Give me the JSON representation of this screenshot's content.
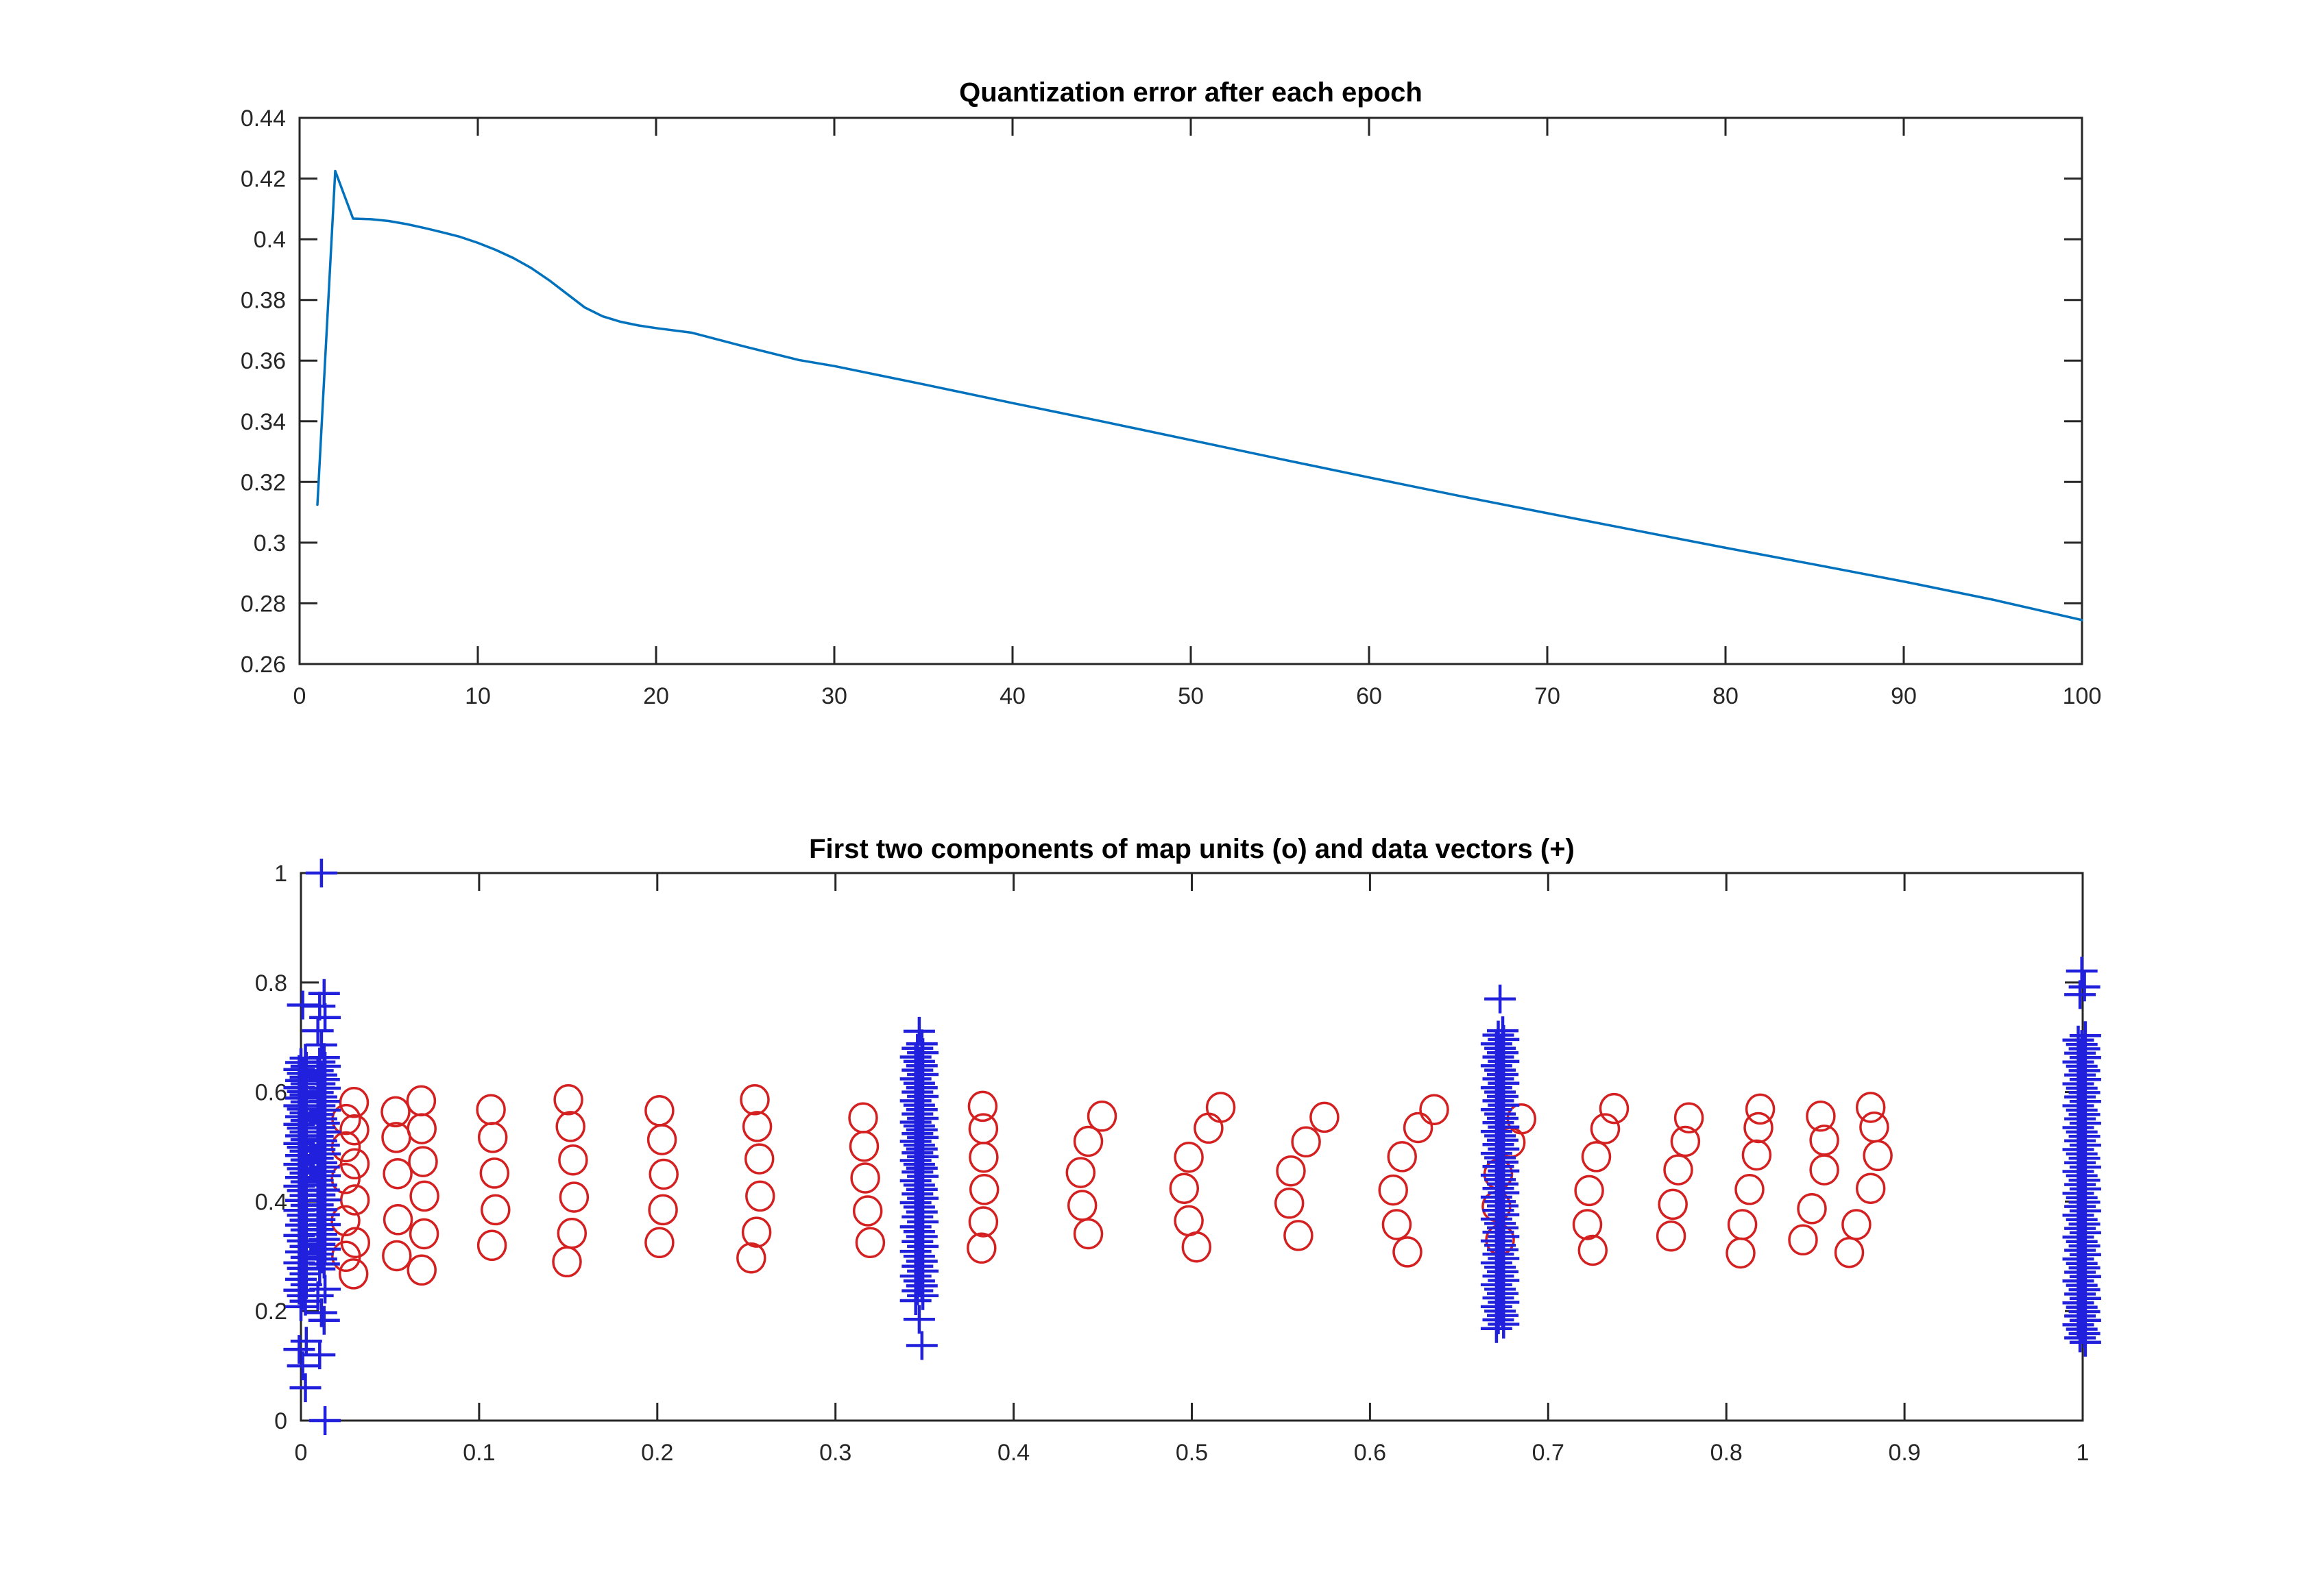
{
  "figure": {
    "background": "#ffffff",
    "axis_color": "#262626",
    "tick_label_color": "#262626",
    "title_color": "#000000",
    "line_color": "#0072bd",
    "map_unit_color": "#d42020",
    "data_vector_color": "#2121dd"
  },
  "chart_data": [
    {
      "type": "line",
      "title": "Quantization error after each epoch",
      "xlabel": "",
      "ylabel": "",
      "xlim": [
        0,
        100
      ],
      "ylim": [
        0.26,
        0.44
      ],
      "grid": false,
      "legend": null,
      "xticks": [
        0,
        10,
        20,
        30,
        40,
        50,
        60,
        70,
        80,
        90,
        100
      ],
      "xtick_labels": [
        "0",
        "10",
        "20",
        "30",
        "40",
        "50",
        "60",
        "70",
        "80",
        "90",
        "100"
      ],
      "yticks": [
        0.26,
        0.28,
        0.3,
        0.32,
        0.34,
        0.36,
        0.38,
        0.4,
        0.42,
        0.44
      ],
      "ytick_labels": [
        "0.26",
        "0.28",
        "0.3",
        "0.32",
        "0.34",
        "0.36",
        "0.38",
        "0.4",
        "0.42",
        "0.44"
      ],
      "line_color": "#0072bd",
      "x": [
        1,
        2,
        3,
        4,
        5,
        6,
        7,
        8,
        9,
        10,
        11,
        12,
        13,
        14,
        15,
        16,
        17,
        18,
        19,
        20,
        22,
        25,
        28,
        30,
        35,
        40,
        45,
        50,
        55,
        60,
        65,
        70,
        75,
        80,
        85,
        90,
        95,
        100
      ],
      "y": [
        0.3125,
        0.4225,
        0.4068,
        0.4066,
        0.406,
        0.405,
        0.4037,
        0.4023,
        0.4008,
        0.3988,
        0.3965,
        0.3938,
        0.3905,
        0.3865,
        0.382,
        0.3775,
        0.3746,
        0.3728,
        0.3716,
        0.3707,
        0.3692,
        0.3646,
        0.3602,
        0.3582,
        0.3522,
        0.346,
        0.34,
        0.3338,
        0.3276,
        0.3215,
        0.3155,
        0.3097,
        0.304,
        0.2983,
        0.2928,
        0.2872,
        0.2812,
        0.2745
      ]
    },
    {
      "type": "scatter",
      "title": "First two components of map units (o) and data vectors (+)",
      "xlabel": "",
      "ylabel": "",
      "xlim": [
        0,
        1
      ],
      "ylim": [
        0,
        1
      ],
      "grid": false,
      "legend": null,
      "xticks": [
        0,
        0.1,
        0.2,
        0.3,
        0.4,
        0.5,
        0.6,
        0.7,
        0.8,
        0.9,
        1
      ],
      "xtick_labels": [
        "0",
        "0.1",
        "0.2",
        "0.3",
        "0.4",
        "0.5",
        "0.6",
        "0.7",
        "0.8",
        "0.9",
        "1"
      ],
      "yticks": [
        0,
        0.2,
        0.4,
        0.6,
        0.8,
        1
      ],
      "ytick_labels": [
        "0",
        "0.2",
        "0.4",
        "0.6",
        "0.8",
        "1"
      ],
      "series": [
        {
          "name": "map units",
          "marker": "o",
          "color": "#d42020",
          "points": [
            [
              0.0254,
              0.55
            ],
            [
              0.0252,
              0.5
            ],
            [
              0.0251,
              0.442
            ],
            [
              0.025,
              0.365
            ],
            [
              0.0253,
              0.3
            ],
            [
              0.0298,
              0.581
            ],
            [
              0.03,
              0.531
            ],
            [
              0.0302,
              0.469
            ],
            [
              0.0303,
              0.403
            ],
            [
              0.0305,
              0.325
            ],
            [
              0.0295,
              0.268
            ],
            [
              0.0531,
              0.564
            ],
            [
              0.0535,
              0.517
            ],
            [
              0.0543,
              0.451
            ],
            [
              0.0545,
              0.367
            ],
            [
              0.0538,
              0.301
            ],
            [
              0.0675,
              0.584
            ],
            [
              0.0678,
              0.533
            ],
            [
              0.0685,
              0.473
            ],
            [
              0.0693,
              0.41
            ],
            [
              0.0691,
              0.341
            ],
            [
              0.0678,
              0.275
            ],
            [
              0.1066,
              0.568
            ],
            [
              0.1076,
              0.517
            ],
            [
              0.1086,
              0.452
            ],
            [
              0.1092,
              0.385
            ],
            [
              0.1072,
              0.32
            ],
            [
              0.1501,
              0.586
            ],
            [
              0.1513,
              0.537
            ],
            [
              0.1527,
              0.476
            ],
            [
              0.1533,
              0.408
            ],
            [
              0.1521,
              0.342
            ],
            [
              0.1493,
              0.29
            ],
            [
              0.2012,
              0.566
            ],
            [
              0.2026,
              0.513
            ],
            [
              0.2036,
              0.45
            ],
            [
              0.2032,
              0.385
            ],
            [
              0.2012,
              0.325
            ],
            [
              0.2547,
              0.586
            ],
            [
              0.2561,
              0.537
            ],
            [
              0.2573,
              0.478
            ],
            [
              0.2577,
              0.41
            ],
            [
              0.2557,
              0.344
            ],
            [
              0.2527,
              0.297
            ],
            [
              0.3155,
              0.553
            ],
            [
              0.3161,
              0.501
            ],
            [
              0.3167,
              0.443
            ],
            [
              0.3181,
              0.383
            ],
            [
              0.3195,
              0.325
            ],
            [
              0.3826,
              0.574
            ],
            [
              0.383,
              0.533
            ],
            [
              0.3832,
              0.481
            ],
            [
              0.3835,
              0.422
            ],
            [
              0.383,
              0.363
            ],
            [
              0.382,
              0.315
            ],
            [
              0.4496,
              0.556
            ],
            [
              0.4419,
              0.51
            ],
            [
              0.4376,
              0.453
            ],
            [
              0.4385,
              0.393
            ],
            [
              0.4419,
              0.341
            ],
            [
              0.5162,
              0.572
            ],
            [
              0.5094,
              0.534
            ],
            [
              0.4983,
              0.481
            ],
            [
              0.4957,
              0.424
            ],
            [
              0.4983,
              0.365
            ],
            [
              0.5026,
              0.317
            ],
            [
              0.5744,
              0.554
            ],
            [
              0.5641,
              0.509
            ],
            [
              0.5556,
              0.456
            ],
            [
              0.5547,
              0.397
            ],
            [
              0.5598,
              0.338
            ],
            [
              0.636,
              0.568
            ],
            [
              0.627,
              0.535
            ],
            [
              0.618,
              0.482
            ],
            [
              0.613,
              0.421
            ],
            [
              0.615,
              0.358
            ],
            [
              0.621,
              0.308
            ],
            [
              0.685,
              0.551
            ],
            [
              0.679,
              0.508
            ],
            [
              0.672,
              0.45
            ],
            [
              0.671,
              0.391
            ],
            [
              0.673,
              0.33
            ],
            [
              0.737,
              0.57
            ],
            [
              0.732,
              0.533
            ],
            [
              0.727,
              0.482
            ],
            [
              0.723,
              0.42
            ],
            [
              0.722,
              0.358
            ],
            [
              0.725,
              0.311
            ],
            [
              0.779,
              0.553
            ],
            [
              0.777,
              0.51
            ],
            [
              0.773,
              0.458
            ],
            [
              0.77,
              0.395
            ],
            [
              0.769,
              0.337
            ],
            [
              0.819,
              0.569
            ],
            [
              0.818,
              0.535
            ],
            [
              0.817,
              0.485
            ],
            [
              0.813,
              0.422
            ],
            [
              0.809,
              0.358
            ],
            [
              0.808,
              0.306
            ],
            [
              0.853,
              0.556
            ],
            [
              0.855,
              0.512
            ],
            [
              0.855,
              0.458
            ],
            [
              0.848,
              0.387
            ],
            [
              0.843,
              0.33
            ],
            [
              0.881,
              0.572
            ],
            [
              0.883,
              0.536
            ],
            [
              0.885,
              0.484
            ],
            [
              0.881,
              0.424
            ],
            [
              0.873,
              0.358
            ],
            [
              0.869,
              0.307
            ]
          ]
        },
        {
          "name": "data vectors",
          "marker": "+",
          "color": "#2121dd",
          "strips": [
            {
              "x": 0.001,
              "ys": [
                0.759,
                0.662,
                0.654,
                0.647,
                0.641,
                0.634,
                0.627,
                0.621,
                0.615,
                0.608,
                0.601,
                0.595,
                0.589,
                0.582,
                0.575,
                0.569,
                0.562,
                0.555,
                0.548,
                0.541,
                0.534,
                0.527,
                0.52,
                0.513,
                0.506,
                0.499,
                0.492,
                0.484,
                0.476,
                0.468,
                0.46,
                0.452,
                0.444,
                0.436,
                0.428,
                0.42,
                0.411,
                0.402,
                0.393,
                0.384,
                0.375,
                0.366,
                0.357,
                0.348,
                0.338,
                0.328,
                0.318,
                0.308,
                0.298,
                0.288,
                0.278,
                0.268,
                0.258,
                0.248,
                0.238,
                0.228,
                0.218,
                0.208,
                0.145,
                0.13,
                0.1,
                0.06
              ]
            },
            {
              "x": 0.0115,
              "ys": [
                1.0,
                0.78,
                0.757,
                0.736,
                0.712,
                0.686,
                0.663,
                0.655,
                0.647,
                0.639,
                0.631,
                0.623,
                0.615,
                0.607,
                0.599,
                0.591,
                0.583,
                0.575,
                0.567,
                0.559,
                0.551,
                0.543,
                0.535,
                0.527,
                0.519,
                0.511,
                0.503,
                0.495,
                0.487,
                0.479,
                0.471,
                0.463,
                0.455,
                0.447,
                0.439,
                0.43,
                0.421,
                0.412,
                0.403,
                0.394,
                0.385,
                0.376,
                0.367,
                0.358,
                0.349,
                0.34,
                0.331,
                0.322,
                0.313,
                0.304,
                0.295,
                0.286,
                0.277,
                0.24,
                0.228,
                0.197,
                0.183,
                0.12,
                0.0
              ]
            },
            {
              "x": 0.347,
              "ys": [
                0.711,
                0.688,
                0.68,
                0.672,
                0.664,
                0.656,
                0.648,
                0.64,
                0.632,
                0.624,
                0.616,
                0.608,
                0.6,
                0.592,
                0.584,
                0.576,
                0.568,
                0.56,
                0.552,
                0.545,
                0.538,
                0.531,
                0.524,
                0.517,
                0.51,
                0.503,
                0.496,
                0.489,
                0.482,
                0.475,
                0.468,
                0.461,
                0.454,
                0.446,
                0.438,
                0.43,
                0.422,
                0.414,
                0.406,
                0.398,
                0.39,
                0.381,
                0.372,
                0.363,
                0.354,
                0.345,
                0.336,
                0.327,
                0.318,
                0.309,
                0.3,
                0.291,
                0.282,
                0.273,
                0.264,
                0.255,
                0.246,
                0.237,
                0.228,
                0.219,
                0.185,
                0.137
              ]
            },
            {
              "x": 0.673,
              "ys": [
                0.77,
                0.712,
                0.704,
                0.696,
                0.688,
                0.68,
                0.672,
                0.664,
                0.656,
                0.648,
                0.64,
                0.632,
                0.624,
                0.616,
                0.608,
                0.6,
                0.592,
                0.584,
                0.576,
                0.568,
                0.56,
                0.552,
                0.544,
                0.536,
                0.528,
                0.52,
                0.512,
                0.504,
                0.496,
                0.488,
                0.48,
                0.472,
                0.464,
                0.456,
                0.448,
                0.44,
                0.432,
                0.424,
                0.416,
                0.408,
                0.4,
                0.392,
                0.384,
                0.376,
                0.368,
                0.36,
                0.352,
                0.344,
                0.336,
                0.328,
                0.32,
                0.312,
                0.304,
                0.296,
                0.288,
                0.28,
                0.272,
                0.264,
                0.256,
                0.248,
                0.24,
                0.232,
                0.224,
                0.216,
                0.208,
                0.2,
                0.192,
                0.184,
                0.176,
                0.168
              ]
            },
            {
              "x": 0.9995,
              "ys": [
                0.821,
                0.792,
                0.778,
                0.703,
                0.695,
                0.687,
                0.679,
                0.671,
                0.663,
                0.655,
                0.647,
                0.639,
                0.631,
                0.623,
                0.615,
                0.607,
                0.599,
                0.591,
                0.583,
                0.575,
                0.567,
                0.559,
                0.551,
                0.543,
                0.535,
                0.527,
                0.519,
                0.511,
                0.503,
                0.495,
                0.487,
                0.479,
                0.471,
                0.463,
                0.455,
                0.447,
                0.439,
                0.431,
                0.423,
                0.415,
                0.407,
                0.399,
                0.391,
                0.383,
                0.375,
                0.367,
                0.359,
                0.351,
                0.343,
                0.335,
                0.327,
                0.319,
                0.311,
                0.303,
                0.295,
                0.287,
                0.279,
                0.271,
                0.263,
                0.255,
                0.247,
                0.239,
                0.231,
                0.223,
                0.215,
                0.207,
                0.199,
                0.191,
                0.183,
                0.175,
                0.167,
                0.159,
                0.151,
                0.143
              ]
            }
          ]
        }
      ]
    }
  ]
}
